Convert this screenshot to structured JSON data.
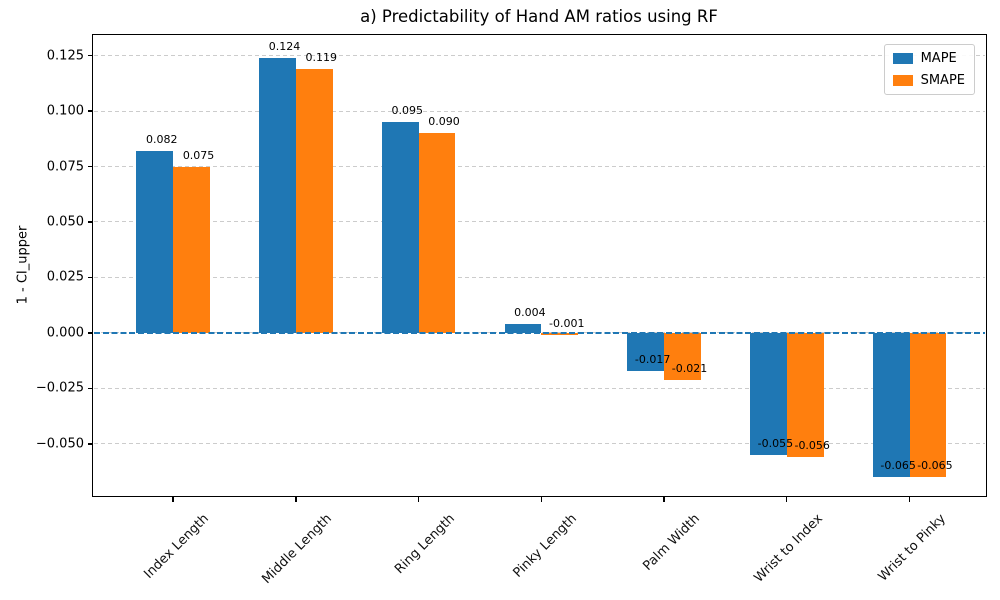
{
  "chart_data": {
    "type": "bar",
    "title": "a) Predictability of Hand AM ratios using RF",
    "xlabel": "",
    "ylabel": "1 - CI_upper",
    "categories": [
      "Index Length",
      "Middle Length",
      "Ring Length",
      "Pinky Length",
      "Palm Width",
      "Wrist to Index",
      "Wrist to Pinky"
    ],
    "series": [
      {
        "name": "MAPE",
        "color": "#1f77b4",
        "values": [
          0.082,
          0.124,
          0.095,
          0.004,
          -0.017,
          -0.055,
          -0.065
        ]
      },
      {
        "name": "SMAPE",
        "color": "#ff7f0e",
        "values": [
          0.075,
          0.119,
          0.09,
          -0.001,
          -0.021,
          -0.056,
          -0.065
        ]
      }
    ],
    "bar_value_label_decimals": 3,
    "yticks": [
      -0.05,
      -0.025,
      0.0,
      0.025,
      0.05,
      0.075,
      0.1,
      0.125
    ],
    "ylim": [
      -0.073,
      0.1338
    ],
    "xlim": [
      -0.645,
      6.615
    ],
    "bar_width_units": 0.3,
    "grid": true,
    "grid_color": "#cccccc",
    "zero_line_color": "#1f77b4",
    "axis_color": "#000000",
    "legend_position": "upper right"
  }
}
